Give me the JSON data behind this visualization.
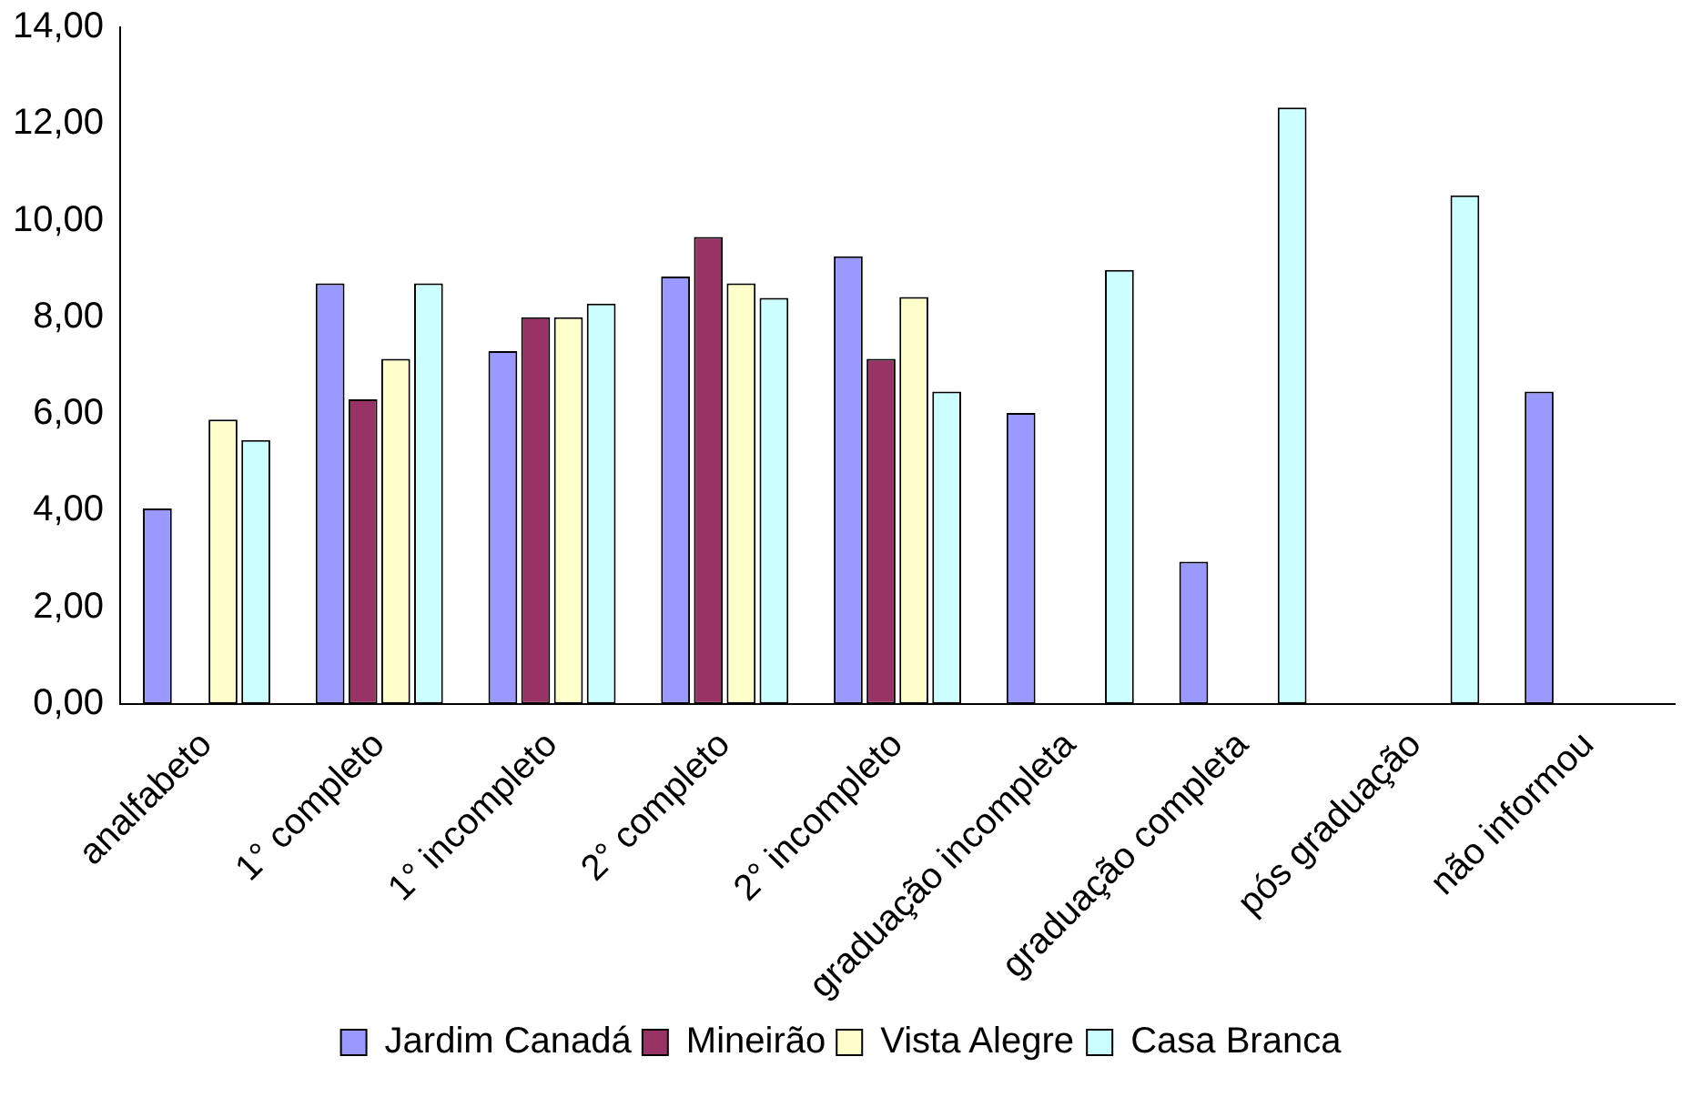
{
  "chart_data": {
    "type": "bar",
    "categories": [
      "analfabeto",
      "1° completo",
      "1° incompleto",
      "2° completo",
      "2° incompleto",
      "graduação incompleta",
      "graduação completa",
      "pós graduação",
      "não informou"
    ],
    "series": [
      {
        "name": "Jardim Canadá",
        "color": "#9999ff",
        "values": [
          4.04,
          8.7,
          7.3,
          8.84,
          9.26,
          6.02,
          2.94,
          null,
          6.46
        ]
      },
      {
        "name": "Mineirão",
        "color": "#993366",
        "values": [
          null,
          6.3,
          8.0,
          9.66,
          7.14,
          null,
          null,
          null,
          null
        ]
      },
      {
        "name": "Vista Alegre",
        "color": "#ffffcc",
        "values": [
          5.88,
          7.14,
          8.0,
          8.7,
          8.42,
          null,
          null,
          null,
          null
        ]
      },
      {
        "name": "Casa Branca",
        "color": "#ccffff",
        "values": [
          5.46,
          8.7,
          8.28,
          8.4,
          6.46,
          8.98,
          12.34,
          10.52,
          null
        ]
      }
    ],
    "ylim": [
      0,
      14
    ],
    "yticks": [
      {
        "value": 0,
        "label": "0,00"
      },
      {
        "value": 2,
        "label": "2,00"
      },
      {
        "value": 4,
        "label": "4,00"
      },
      {
        "value": 6,
        "label": "6,00"
      },
      {
        "value": 8,
        "label": "8,00"
      },
      {
        "value": 10,
        "label": "10,00"
      },
      {
        "value": 12,
        "label": "12,00"
      },
      {
        "value": 14,
        "label": "14,00"
      }
    ],
    "grid": false,
    "legend": "bottom"
  }
}
